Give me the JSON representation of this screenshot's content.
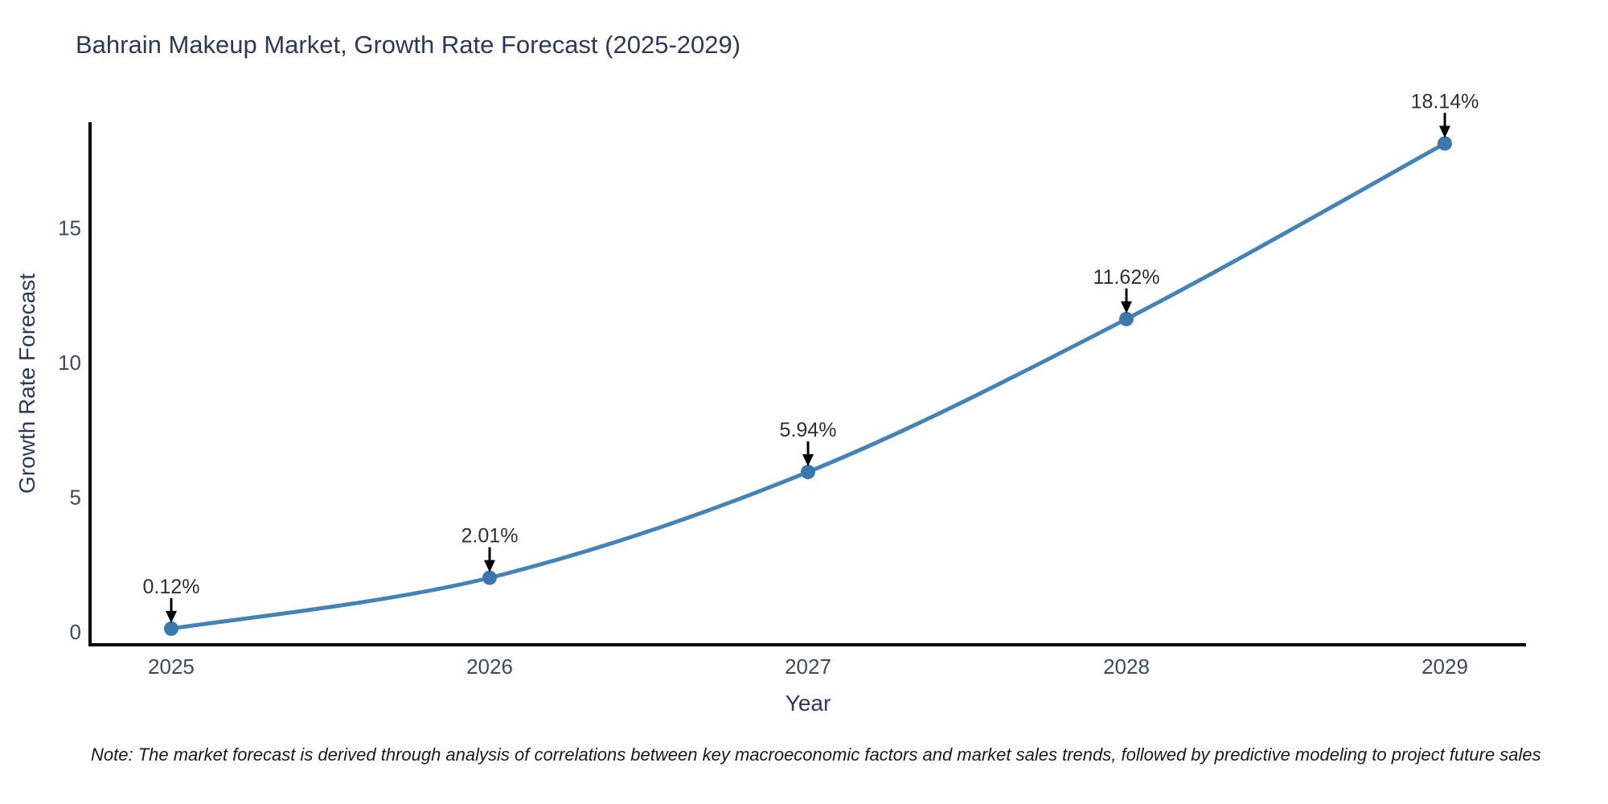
{
  "title": "Bahrain Makeup Market, Growth Rate Forecast (2025-2029)",
  "note": "Note: The market forecast is derived through analysis of correlations between key macroeconomic factors and market sales trends, followed by predictive modeling to project future sales",
  "chart_data": {
    "type": "line",
    "title": "Bahrain Makeup Market, Growth Rate Forecast (2025-2029)",
    "xlabel": "Year",
    "ylabel": "Growth Rate Forecast",
    "x": [
      2025,
      2026,
      2027,
      2028,
      2029
    ],
    "values": [
      0.12,
      2.01,
      5.94,
      11.62,
      18.14
    ],
    "point_labels": [
      "0.12%",
      "2.01%",
      "5.94%",
      "11.62%",
      "18.14%"
    ],
    "xticks": [
      "2025",
      "2026",
      "2027",
      "2028",
      "2029"
    ],
    "xtick_values": [
      2025,
      2026,
      2027,
      2028,
      2029
    ],
    "yticks": [
      0,
      5,
      10,
      15
    ],
    "xlim": [
      2024.745,
      2029.255
    ],
    "ylim": [
      -0.48,
      18.93
    ],
    "grid": false,
    "legend": null,
    "line_color": "#4583b6",
    "marker_color": "#3a77ad",
    "axis_color": "#000000",
    "tick_color": "#3d4a5e",
    "annotation_text_color": "#2f2f2f",
    "annotation_arrow_color": "#000000",
    "title_color": "#2d3a56",
    "background_color": "#ffffff"
  }
}
